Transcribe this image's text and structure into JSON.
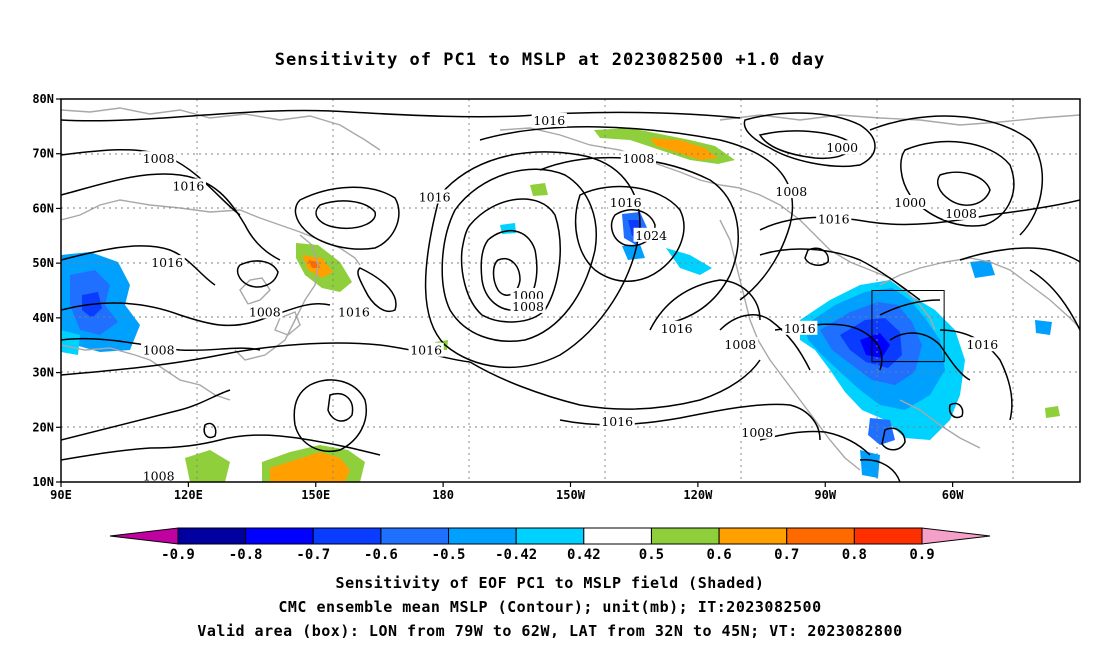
{
  "title": "Sensitivity of PC1 to MSLP at 2023082500 +1.0 day",
  "map": {
    "lon_ticks": [
      "90E",
      "120E",
      "150E",
      "180",
      "150W",
      "120W",
      "90W",
      "60W"
    ],
    "lat_ticks": [
      "80N",
      "70N",
      "60N",
      "50N",
      "40N",
      "30N",
      "20N",
      "10N"
    ],
    "contour_labels": [
      {
        "text": "1016",
        "lon": 205,
        "lat": 76
      },
      {
        "text": "1008",
        "lon": 113,
        "lat": 69
      },
      {
        "text": "1016",
        "lon": 120,
        "lat": 64
      },
      {
        "text": "1008",
        "lon": 226,
        "lat": 69
      },
      {
        "text": "1000",
        "lon": 274,
        "lat": 71
      },
      {
        "text": "1008",
        "lon": 262,
        "lat": 63
      },
      {
        "text": "1016",
        "lon": 178,
        "lat": 62
      },
      {
        "text": "1016",
        "lon": 223,
        "lat": 61
      },
      {
        "text": "1000",
        "lon": 290,
        "lat": 61
      },
      {
        "text": "1008",
        "lon": 302,
        "lat": 59
      },
      {
        "text": "1016",
        "lon": 272,
        "lat": 58
      },
      {
        "text": "1024",
        "lon": 229,
        "lat": 55
      },
      {
        "text": "1016",
        "lon": 115,
        "lat": 50
      },
      {
        "text": "1008",
        "lon": 138,
        "lat": 41
      },
      {
        "text": "1016",
        "lon": 159,
        "lat": 41
      },
      {
        "text": "1000",
        "lon": 200,
        "lat": 44
      },
      {
        "text": "1008",
        "lon": 200,
        "lat": 42
      },
      {
        "text": "1016",
        "lon": 235,
        "lat": 38
      },
      {
        "text": "1016",
        "lon": 264,
        "lat": 38
      },
      {
        "text": "1008",
        "lon": 250,
        "lat": 35
      },
      {
        "text": "1016",
        "lon": 176,
        "lat": 34
      },
      {
        "text": "1008",
        "lon": 113,
        "lat": 34
      },
      {
        "text": "1016",
        "lon": 307,
        "lat": 35
      },
      {
        "text": "1016",
        "lon": 221,
        "lat": 21
      },
      {
        "text": "1008",
        "lon": 254,
        "lat": 19
      },
      {
        "text": "1008",
        "lon": 113,
        "lat": 11
      }
    ],
    "valid_box": {
      "lon_min": 281,
      "lon_max": 298,
      "lat_min": 32,
      "lat_max": 45
    }
  },
  "colorbar": {
    "labels": [
      "-0.9",
      "-0.8",
      "-0.7",
      "-0.6",
      "-0.5",
      "-0.42",
      "0.42",
      "0.5",
      "0.6",
      "0.7",
      "0.8",
      "0.9"
    ],
    "colors": [
      "#0000a0",
      "#0000ff",
      "#0a3cff",
      "#2070ff",
      "#00a0ff",
      "#00d2ff",
      "#ffffff",
      "#8fcf3c",
      "#ffa000",
      "#ff6a00",
      "#ff3000",
      "#ff0000"
    ],
    "left_arrow_color": "#c000a0",
    "right_arrow_color": "#f5a0c8"
  },
  "captions": [
    "Sensitivity of EOF PC1 to MSLP field (Shaded)",
    "CMC ensemble mean MSLP (Contour); unit(mb); IT:2023082500",
    "Valid area (box): LON from 79W to 62W, LAT from 32N to 45N; VT: 2023082800"
  ]
}
